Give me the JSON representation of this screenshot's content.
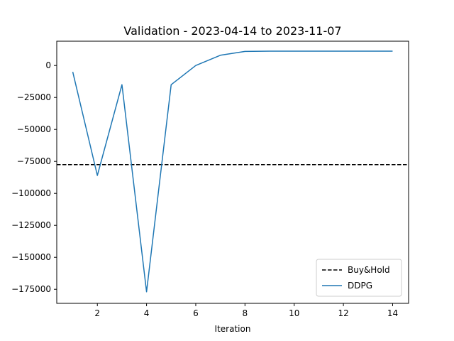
{
  "chart_data": {
    "type": "line",
    "title": "Validation - 2023-04-14 to 2023-11-07",
    "xlabel": "Iteration",
    "ylabel": "",
    "xlim": [
      0.35,
      14.65
    ],
    "ylim": [
      -186000,
      19000
    ],
    "x_ticks": [
      2,
      4,
      6,
      8,
      10,
      12,
      14
    ],
    "y_ticks": [
      0,
      -25000,
      -50000,
      -75000,
      -100000,
      -125000,
      -150000,
      -175000
    ],
    "grid": false,
    "legend_position": "lower-right",
    "series": [
      {
        "name": "DDPG",
        "color": "#1f77b4",
        "style": "solid",
        "x": [
          1,
          2,
          3,
          4,
          5,
          6,
          7,
          8,
          9,
          10,
          11,
          12,
          13,
          14
        ],
        "y": [
          -5000,
          -86000,
          -15000,
          -177000,
          -15000,
          0,
          8000,
          11000,
          11200,
          11200,
          11200,
          11200,
          11200,
          11200
        ]
      }
    ],
    "reference_lines": [
      {
        "name": "Buy&Hold",
        "color": "#000000",
        "style": "dashed",
        "y": -77500
      }
    ]
  }
}
